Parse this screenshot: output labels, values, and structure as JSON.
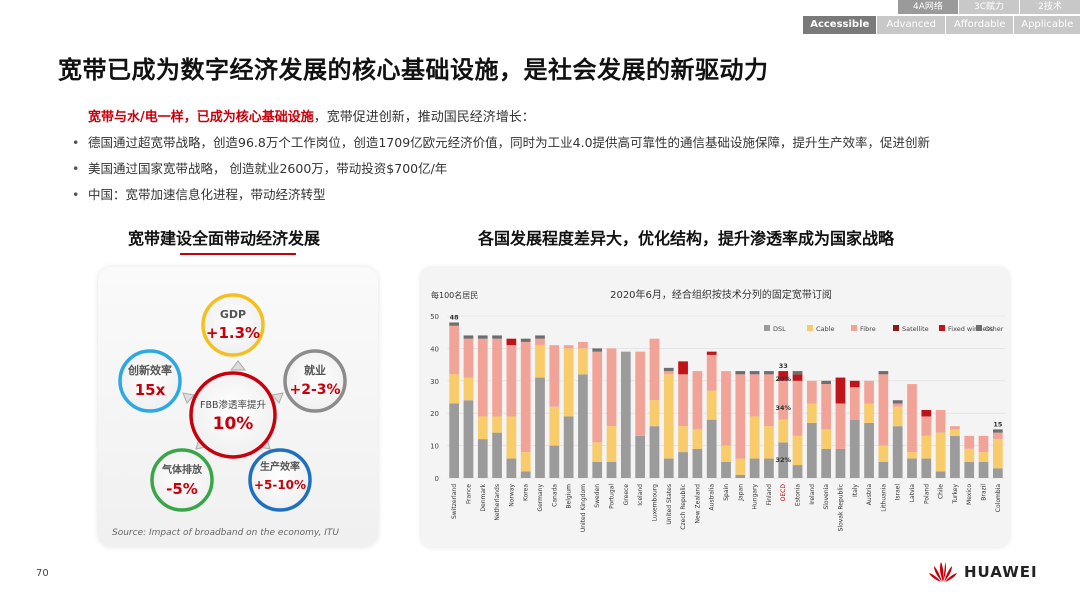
{
  "nav": {
    "top": [
      "4A网络",
      "3C赋力",
      "2技术"
    ],
    "sub": [
      "Accessible",
      "Advanced",
      "Affordable",
      "Applicable"
    ]
  },
  "title": "宽带已成为数字经济发展的核心基础设施，是社会发展的新驱动力",
  "lead": {
    "red": "宽带与水/电一样，已成为核心基础设施",
    "rest": "，宽带促进创新，推动国民经济增长："
  },
  "bullets": [
    "德国通过超宽带战略，创造96.8万个工作岗位，创造1709亿欧元经济价值，同时为工业4.0提供高可靠性的通信基础设施保障，提升生产效率，促进创新",
    "美国通过国家宽带战略， 创造就业2600万，带动投资$700亿/年",
    "中国：宽带加速信息化进程，带动经济转型"
  ],
  "left": {
    "heading": "宽带建设全面带动经济发展",
    "center": {
      "label": "FBB渗透率提升",
      "value": "10%"
    },
    "nodes": [
      {
        "label": "GDP",
        "value": "+1.3%",
        "color": "#f2c021"
      },
      {
        "label": "就业",
        "value": "+2-3%",
        "color": "#8c8c8c"
      },
      {
        "label": "生产效率",
        "value": "+5-10%",
        "color": "#1f6fbf"
      },
      {
        "label": "气体排放",
        "value": "-5%",
        "color": "#3aa548"
      },
      {
        "label": "创新效率",
        "value": "15x",
        "color": "#2ca9e1"
      }
    ],
    "source": "Source:  Impact of broadband on the economy, ITU"
  },
  "right": {
    "heading": "各国发展程度差异大，优化结构，提升渗透率成为国家战略"
  },
  "page_number": "70",
  "brand": "HUAWEI",
  "chart_data": {
    "type": "bar",
    "stacked": true,
    "title": "2020年6月，经合组织按技术分列的固定宽带订阅",
    "ylabel": "每100名居民",
    "ylim": [
      0,
      50
    ],
    "yticks": [
      0,
      10,
      20,
      30,
      40,
      50
    ],
    "legend_position": "top-right",
    "categories": [
      "Switzerland",
      "France",
      "Denmark",
      "Netherlands",
      "Norway",
      "Korea",
      "Germany",
      "Canada",
      "Belgium",
      "United Kingdom",
      "Sweden",
      "Portugal",
      "Greece",
      "Iceland",
      "Luxembourg",
      "United States",
      "Czech Republic",
      "New Zealand",
      "Australia",
      "Spain",
      "Japan",
      "Hungary",
      "Finland",
      "OECD",
      "Estonia",
      "Ireland",
      "Slovenia",
      "Slovak Republic",
      "Italy",
      "Austria",
      "Lithuania",
      "Israel",
      "Latvia",
      "Poland",
      "Chile",
      "Turkey",
      "Mexico",
      "Brazil",
      "Colombia"
    ],
    "highlight_category": "OECD",
    "annotations": [
      {
        "category": "Switzerland",
        "text": "48"
      },
      {
        "category": "OECD",
        "text": "33"
      },
      {
        "category": "OECD",
        "text": "20%"
      },
      {
        "category": "OECD",
        "text": "34%"
      },
      {
        "category": "OECD",
        "text": "32%"
      },
      {
        "category": "Colombia",
        "text": "15"
      }
    ],
    "series": [
      {
        "name": "DSL",
        "color": "#9b9b9b",
        "values": [
          23,
          24,
          12,
          14,
          6,
          2,
          31,
          10,
          19,
          32,
          5,
          5,
          39,
          13,
          16,
          6,
          8,
          9,
          18,
          5,
          1,
          6,
          6,
          11,
          4,
          17,
          9,
          9,
          18,
          17,
          5,
          16,
          6,
          6,
          2,
          13,
          5,
          5,
          3
        ]
      },
      {
        "name": "Cable",
        "color": "#f8cc6b",
        "values": [
          9,
          7,
          7,
          5,
          13,
          6,
          10,
          12,
          21,
          8,
          6,
          11,
          0,
          0,
          8,
          26,
          8,
          6,
          9,
          5,
          5,
          13,
          10,
          7,
          9,
          6,
          6,
          0,
          0,
          6,
          5,
          6,
          2,
          7,
          12,
          2,
          4,
          3,
          9
        ]
      },
      {
        "name": "Fibre",
        "color": "#f2a398",
        "values": [
          15,
          12,
          24,
          24,
          22,
          34,
          2,
          19,
          1,
          2,
          28,
          24,
          0,
          26,
          19,
          1,
          16,
          18,
          11,
          23,
          26,
          13,
          16,
          12,
          17,
          7,
          14,
          14,
          10,
          7,
          22,
          1,
          21,
          6,
          7,
          1,
          4,
          5,
          2
        ]
      },
      {
        "name": "Satellite",
        "color": "#8b1a1a",
        "values": [
          0,
          0,
          0,
          0,
          0,
          0,
          0,
          0,
          0,
          0,
          0,
          0,
          0,
          0,
          0,
          0,
          0,
          0,
          0,
          0,
          0,
          0,
          0,
          0,
          0,
          0,
          0,
          0,
          0,
          0,
          0,
          0,
          0,
          0,
          0,
          0,
          0,
          0,
          0
        ]
      },
      {
        "name": "Fixed wireless",
        "color": "#c0141b",
        "values": [
          0,
          0,
          0,
          0,
          2,
          0,
          0,
          0,
          0,
          0,
          0,
          0,
          0,
          0,
          0,
          0,
          4,
          0,
          1,
          0,
          0,
          0,
          0,
          3,
          2,
          0,
          0,
          8,
          2,
          0,
          0,
          0,
          0,
          2,
          0,
          0,
          0,
          0,
          0
        ]
      },
      {
        "name": "Other",
        "color": "#6e6e6e",
        "values": [
          1,
          1,
          1,
          1,
          0,
          1,
          1,
          0,
          0,
          0,
          1,
          0,
          0,
          0,
          0,
          1,
          0,
          0,
          0,
          0,
          1,
          1,
          1,
          0,
          1,
          0,
          1,
          0,
          0,
          0,
          1,
          1,
          0,
          0,
          0,
          0,
          0,
          0,
          1
        ]
      }
    ]
  }
}
